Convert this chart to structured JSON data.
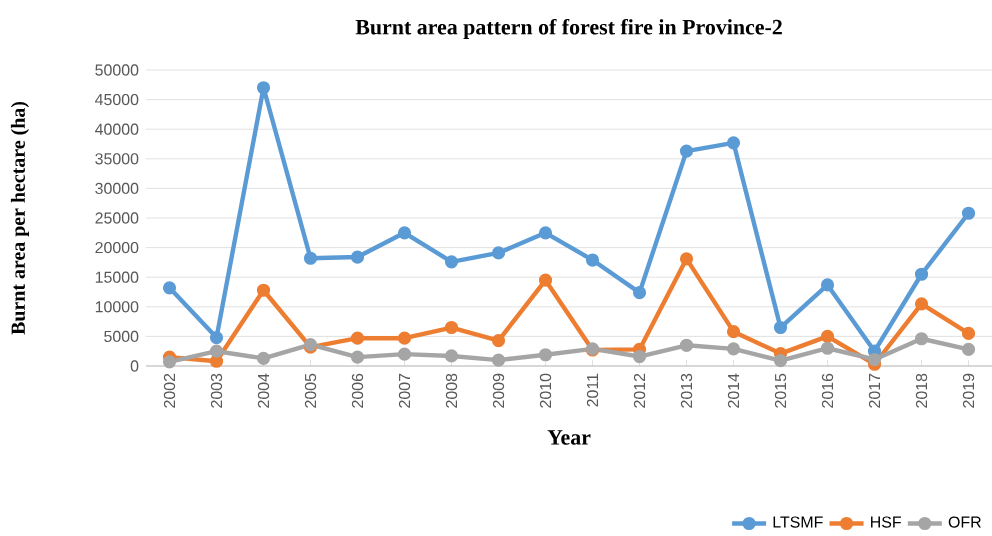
{
  "chart_data": {
    "type": "line",
    "title": "Burnt area pattern of forest fire in Province-2",
    "xlabel": "Year",
    "ylabel": "Burnt area per hectare (ha)",
    "categories": [
      "2002",
      "2003",
      "2004",
      "2005",
      "2006",
      "2007",
      "2008",
      "2009",
      "2010",
      "2011",
      "2012",
      "2013",
      "2014",
      "2015",
      "2016",
      "2017",
      "2018",
      "2019"
    ],
    "series": [
      {
        "name": "LTSMF",
        "color": "#5b9bd5",
        "values": [
          13200,
          4800,
          47000,
          18200,
          18400,
          22500,
          17600,
          19100,
          22500,
          17900,
          12400,
          36300,
          37700,
          6500,
          13700,
          2500,
          15500,
          25800
        ]
      },
      {
        "name": "HSF",
        "color": "#ed7d31",
        "values": [
          1500,
          800,
          12800,
          3200,
          4700,
          4700,
          6500,
          4300,
          14500,
          2700,
          2800,
          18100,
          5800,
          2100,
          5000,
          300,
          10500,
          5500
        ]
      },
      {
        "name": "OFR",
        "color": "#a5a5a5",
        "values": [
          700,
          2500,
          1300,
          3600,
          1500,
          2000,
          1700,
          1000,
          1900,
          2900,
          1600,
          3500,
          2900,
          900,
          3000,
          1100,
          4600,
          2800
        ]
      }
    ],
    "ylim": [
      0,
      50000
    ],
    "yticks": [
      0,
      5000,
      10000,
      15000,
      20000,
      25000,
      30000,
      35000,
      40000,
      45000,
      50000
    ],
    "grid": "y",
    "legend": "bottom right",
    "marker": "circle",
    "line_style": "solid"
  }
}
